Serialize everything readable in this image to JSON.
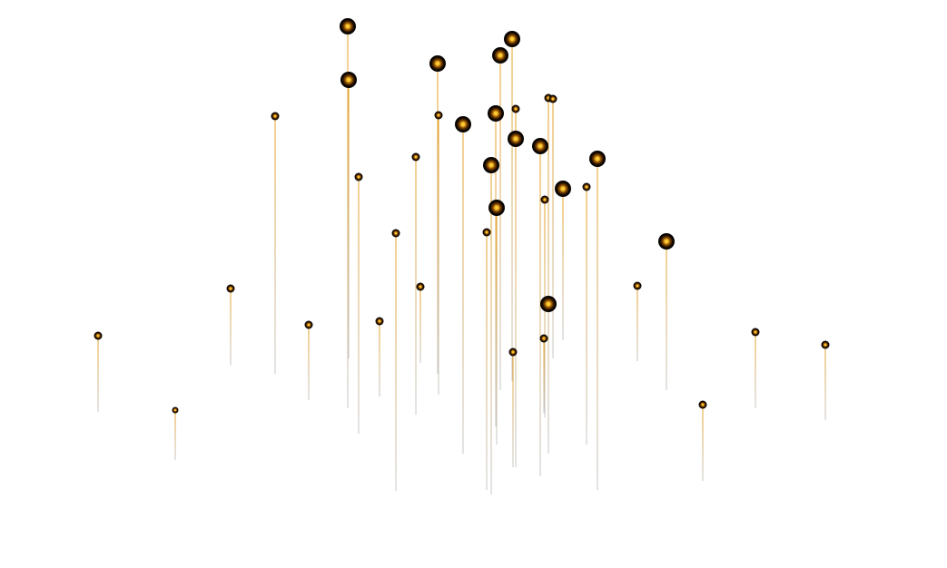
{
  "colors": {
    "background": "#ffffff",
    "orb_core": "#ffcc33",
    "orb_glow": "#d98a0b",
    "orb_shell": "#000000",
    "stem_top": "#e8a020",
    "stem_bottom": "#c8c8c8"
  },
  "icons": {
    "orb": "glowing-orb-icon"
  }
}
